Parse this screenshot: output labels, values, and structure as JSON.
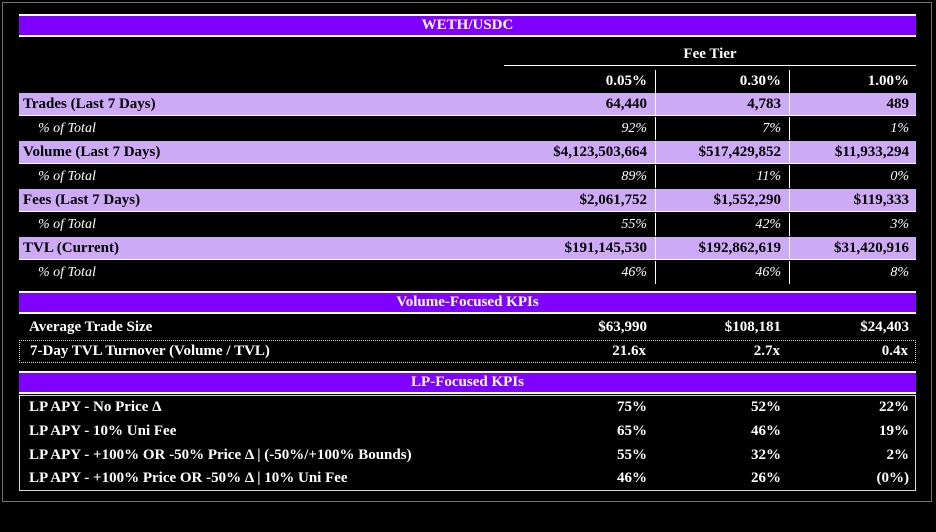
{
  "title": "WETH/USDC",
  "fee_tier_label": "Fee Tier",
  "tiers": [
    "0.05%",
    "0.30%",
    "1.00%"
  ],
  "metrics": [
    {
      "label": "Trades (Last 7 Days)",
      "values": [
        "64,440",
        "4,783",
        "489"
      ],
      "pct_label": "% of Total",
      "pcts": [
        "92%",
        "7%",
        "1%"
      ]
    },
    {
      "label": "Volume (Last 7 Days)",
      "values": [
        "$4,123,503,664",
        "$517,429,852",
        "$11,933,294"
      ],
      "pct_label": "% of Total",
      "pcts": [
        "89%",
        "11%",
        "0%"
      ]
    },
    {
      "label": "Fees (Last 7 Days)",
      "values": [
        "$2,061,752",
        "$1,552,290",
        "$119,333"
      ],
      "pct_label": "% of Total",
      "pcts": [
        "55%",
        "42%",
        "3%"
      ]
    },
    {
      "label": "TVL (Current)",
      "values": [
        "$191,145,530",
        "$192,862,619",
        "$31,420,916"
      ],
      "pct_label": "% of Total",
      "pcts": [
        "46%",
        "46%",
        "8%"
      ]
    }
  ],
  "volume_kpis": {
    "title": "Volume-Focused KPIs",
    "rows": [
      {
        "label": "Average Trade Size",
        "values": [
          "$63,990",
          "$108,181",
          "$24,403"
        ]
      },
      {
        "label": "7-Day TVL Turnover (Volume / TVL)",
        "values": [
          "21.6x",
          "2.7x",
          "0.4x"
        ]
      }
    ]
  },
  "lp_kpis": {
    "title": "LP-Focused KPIs",
    "rows": [
      {
        "label": "LP APY - No Price Δ",
        "values": [
          "75%",
          "52%",
          "22%"
        ]
      },
      {
        "label": "LP APY - 10% Uni Fee",
        "values": [
          "65%",
          "46%",
          "19%"
        ]
      },
      {
        "label": "LP APY - +100% OR -50% Price Δ | (-50%/+100% Bounds)",
        "values": [
          "55%",
          "32%",
          "2%"
        ]
      },
      {
        "label": "LP APY - +100% Price OR -50% Δ | 10% Uni Fee",
        "values": [
          "46%",
          "26%",
          "(0%)"
        ]
      }
    ]
  }
}
